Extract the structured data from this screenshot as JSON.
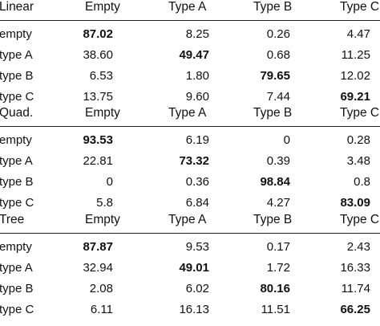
{
  "sections": [
    {
      "header": [
        "Linear",
        "Empty",
        "Type A",
        "Type B",
        "Type C"
      ],
      "rows": [
        {
          "label": "empty",
          "values": [
            "87.02",
            "8.25",
            "0.26",
            "4.47"
          ],
          "bold_index": 0
        },
        {
          "label": "type A",
          "values": [
            "38.60",
            "49.47",
            "0.68",
            "11.25"
          ],
          "bold_index": 1
        },
        {
          "label": "type B",
          "values": [
            "6.53",
            "1.80",
            "79.65",
            "12.02"
          ],
          "bold_index": 2
        },
        {
          "label": "type C",
          "values": [
            "13.75",
            "9.60",
            "7.44",
            "69.21"
          ],
          "bold_index": 3
        }
      ]
    },
    {
      "header": [
        "Quad.",
        "Empty",
        "Type A",
        "Type B",
        "Type C"
      ],
      "rows": [
        {
          "label": "empty",
          "values": [
            "93.53",
            "6.19",
            "0",
            "0.28"
          ],
          "bold_index": 0
        },
        {
          "label": "type A",
          "values": [
            "22.81",
            "73.32",
            "0.39",
            "3.48"
          ],
          "bold_index": 1
        },
        {
          "label": "type B",
          "values": [
            "0",
            "0.36",
            "98.84",
            "0.8"
          ],
          "bold_index": 2
        },
        {
          "label": "type C",
          "values": [
            "5.8",
            "6.84",
            "4.27",
            "83.09"
          ],
          "bold_index": 3
        }
      ]
    },
    {
      "header": [
        "Tree",
        "Empty",
        "Type A",
        "Type B",
        "Type C"
      ],
      "rows": [
        {
          "label": "empty",
          "values": [
            "87.87",
            "9.53",
            "0.17",
            "2.43"
          ],
          "bold_index": 0
        },
        {
          "label": "type A",
          "values": [
            "32.94",
            "49.01",
            "1.72",
            "16.33"
          ],
          "bold_index": 1
        },
        {
          "label": "type B",
          "values": [
            "2.08",
            "6.02",
            "80.16",
            "11.74"
          ],
          "bold_index": 2
        },
        {
          "label": "type C",
          "values": [
            "6.11",
            "16.13",
            "11.51",
            "66.25"
          ],
          "bold_index": 3
        }
      ]
    }
  ]
}
